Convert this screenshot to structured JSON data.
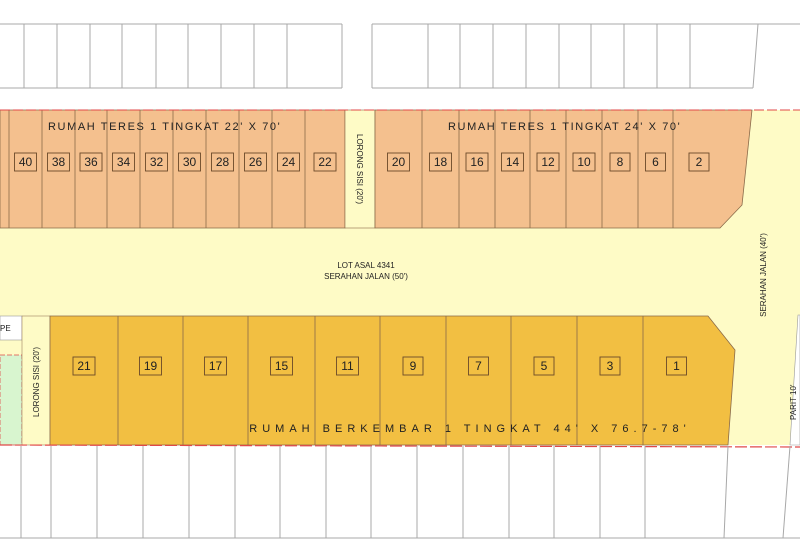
{
  "colors": {
    "terrace_lot": "#f4c08e",
    "semi_detached_lot": "#f2bf42",
    "road_reserve": "#fefbc6",
    "green_area": "#d8f5cf",
    "boundary": "#e04848"
  },
  "top_row": {
    "label_left": "RUMAH TERES 1 TINGKAT 22' X 70'",
    "label_right": "RUMAH TERES 1 TINGKAT 24' X 70'",
    "lots_left": [
      "40",
      "38",
      "36",
      "34",
      "32",
      "30",
      "28",
      "26",
      "24",
      "22"
    ],
    "lots_right": [
      "20",
      "18",
      "16",
      "14",
      "12",
      "10",
      "8",
      "6",
      "2"
    ],
    "side_lane": "LORONG SISI (20')"
  },
  "main_road": {
    "line1": "LOT ASAL 4341",
    "line2": "SERAHAN JALAN (50')"
  },
  "side_road": "SERAHAN JALAN (40')",
  "bottom_row": {
    "label": "RUMAH BERKEMBAR 1 TINGKAT 44' X 76.7-78'",
    "lots": [
      "21",
      "19",
      "17",
      "15",
      "11",
      "9",
      "7",
      "5",
      "3",
      "1"
    ],
    "side_lane": "LORONG SISI (20')",
    "corner_label": "PE"
  },
  "right_edge_label": "PARIT 10'"
}
